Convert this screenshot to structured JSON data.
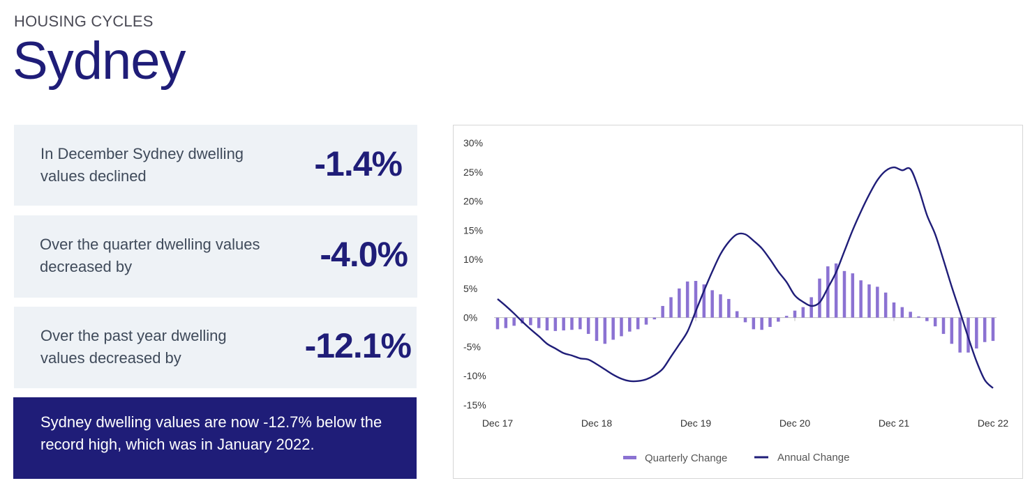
{
  "header": {
    "eyebrow": "HOUSING CYCLES",
    "title": "Sydney"
  },
  "cards": [
    {
      "text": "In December Sydney dwelling values declined",
      "value": "-1.4%"
    },
    {
      "text": "Over the quarter dwelling values decreased by",
      "value": "-4.0%"
    },
    {
      "text": "Over the past year dwelling values decreased by",
      "value": "-12.1%"
    }
  ],
  "banner": {
    "text": "Sydney dwelling values are now -12.7% below the record high, which was in January 2022."
  },
  "colors": {
    "navy": "#1f1d78",
    "bar": "#8b72d2",
    "card_bg": "#eef2f6"
  },
  "chart_data": {
    "type": "bar+line",
    "title": "",
    "xlabel": "",
    "ylabel": "",
    "ylim": [
      -15,
      30
    ],
    "yticks": [
      "30%",
      "25%",
      "20%",
      "15%",
      "10%",
      "5%",
      "0%",
      "-5%",
      "-10%",
      "-15%"
    ],
    "ytick_values": [
      30,
      25,
      20,
      15,
      10,
      5,
      0,
      -5,
      -10,
      -15
    ],
    "x_tick_labels": [
      "Dec 17",
      "Dec 18",
      "Dec 19",
      "Dec 20",
      "Dec 21",
      "Dec 22"
    ],
    "x_tick_indices": [
      0,
      12,
      24,
      36,
      48,
      60
    ],
    "series": [
      {
        "name": "Quarterly Change",
        "kind": "bar",
        "color": "#8b72d2",
        "values": [
          -2.0,
          -1.8,
          -1.4,
          -1.0,
          -1.3,
          -1.8,
          -2.2,
          -2.3,
          -2.2,
          -2.1,
          -2.0,
          -2.8,
          -4.0,
          -4.5,
          -3.8,
          -3.2,
          -2.4,
          -2.0,
          -1.2,
          -0.3,
          2.0,
          3.5,
          5.0,
          6.2,
          6.3,
          5.7,
          4.7,
          4.0,
          3.2,
          1.1,
          -0.8,
          -2.0,
          -2.1,
          -1.6,
          -0.7,
          0.3,
          1.2,
          1.8,
          3.5,
          6.7,
          8.8,
          9.3,
          8.0,
          7.6,
          6.4,
          5.7,
          5.3,
          4.3,
          2.6,
          1.8,
          1.0,
          0.2,
          -0.6,
          -1.5,
          -2.8,
          -4.5,
          -6.0,
          -6.0,
          -5.3,
          -4.2,
          -4.0
        ]
      },
      {
        "name": "Annual Change",
        "kind": "line",
        "color": "#1f1d78",
        "values": [
          3.2,
          2.0,
          0.7,
          -0.7,
          -2.0,
          -3.2,
          -4.5,
          -5.3,
          -6.1,
          -6.5,
          -7.0,
          -7.2,
          -8.0,
          -8.9,
          -9.8,
          -10.5,
          -10.9,
          -10.9,
          -10.6,
          -9.9,
          -8.8,
          -6.7,
          -4.6,
          -2.4,
          1.1,
          4.6,
          7.9,
          10.9,
          13.0,
          14.3,
          14.3,
          13.2,
          11.9,
          10.0,
          7.9,
          6.1,
          3.8,
          2.7,
          2.0,
          2.6,
          5.1,
          7.8,
          11.4,
          15.0,
          18.2,
          21.1,
          23.6,
          25.2,
          25.8,
          25.3,
          25.5,
          22.1,
          17.6,
          14.3,
          9.9,
          5.3,
          1.0,
          -3.4,
          -7.5,
          -10.7,
          -12.1
        ]
      }
    ],
    "legend": {
      "position": "bottom-center",
      "entries": [
        "Quarterly Change",
        "Annual Change"
      ]
    }
  }
}
